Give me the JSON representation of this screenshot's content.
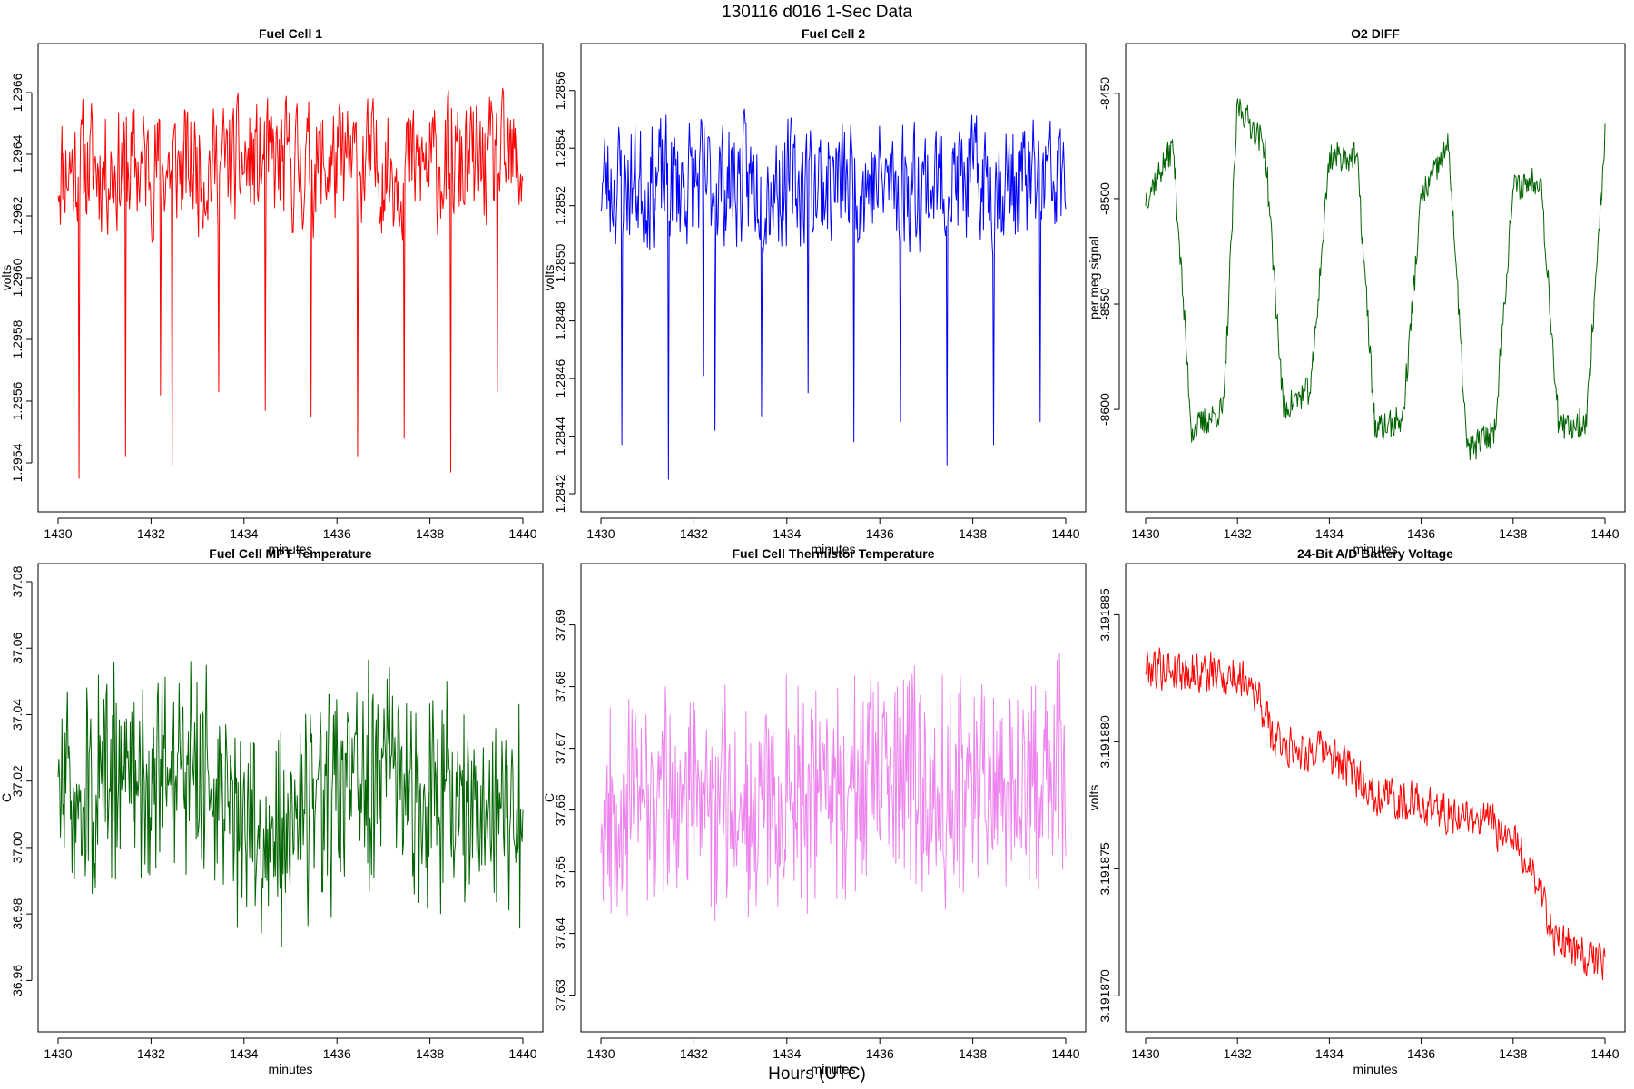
{
  "figure": {
    "title": "130116   d016   1-Sec Data",
    "xlabel": "Hours (UTC)"
  },
  "chart_data": [
    {
      "type": "line",
      "title": "Fuel Cell 1",
      "xlabel": "minutes",
      "ylabel": "volts",
      "color": "#ff0000",
      "xlim": [
        1430,
        1440
      ],
      "ylim": [
        1.2953,
        1.2967
      ],
      "xticks": [
        1430,
        1432,
        1434,
        1436,
        1438,
        1440
      ],
      "xtick_labels": [
        "1430",
        "1432",
        "1434",
        "1436",
        "1438",
        "1440"
      ],
      "yticks": [
        1.2954,
        1.2956,
        1.2958,
        1.296,
        1.2962,
        1.2964,
        1.2966
      ],
      "ytick_labels": [
        "1.2954",
        "1.2956",
        "1.2958",
        "1.2960",
        "1.2962",
        "1.2964",
        "1.2966"
      ],
      "series": [
        {
          "name": "Fuel Cell 1",
          "generator": {
            "kind": "noise_spikes",
            "seed": 11,
            "n": 600,
            "base": 1.29636,
            "amp": 0.00028,
            "spikes": [
              [
                1430.45,
                1.29535
              ],
              [
                1431.45,
                1.29542
              ],
              [
                1432.2,
                1.29562
              ],
              [
                1432.45,
                1.29539
              ],
              [
                1433.45,
                1.29563
              ],
              [
                1434.45,
                1.29557
              ],
              [
                1435.45,
                1.29555
              ],
              [
                1436.45,
                1.29542
              ],
              [
                1437.45,
                1.29548
              ],
              [
                1438.45,
                1.29537
              ],
              [
                1439.45,
                1.29563
              ]
            ]
          }
        }
      ]
    },
    {
      "type": "line",
      "title": "Fuel Cell 2",
      "xlabel": "minutes",
      "ylabel": "volts",
      "color": "#0000ff",
      "xlim": [
        1430,
        1440
      ],
      "ylim": [
        1.2842,
        1.2857
      ],
      "xticks": [
        1430,
        1432,
        1434,
        1436,
        1438,
        1440
      ],
      "xtick_labels": [
        "1430",
        "1432",
        "1434",
        "1436",
        "1438",
        "1440"
      ],
      "yticks": [
        1.2842,
        1.2844,
        1.2846,
        1.2848,
        1.285,
        1.2852,
        1.2854,
        1.2856
      ],
      "ytick_labels": [
        "1.2842",
        "1.2844",
        "1.2846",
        "1.2848",
        "1.2850",
        "1.2852",
        "1.2854",
        "1.2856"
      ],
      "series": [
        {
          "name": "Fuel Cell 2",
          "generator": {
            "kind": "noise_spikes",
            "seed": 23,
            "n": 600,
            "base": 1.28528,
            "amp": 0.0003,
            "spikes": [
              [
                1430.45,
                1.28437
              ],
              [
                1431.45,
                1.28425
              ],
              [
                1432.2,
                1.28461
              ],
              [
                1432.45,
                1.28442
              ],
              [
                1433.45,
                1.28447
              ],
              [
                1434.45,
                1.28455
              ],
              [
                1435.45,
                1.28438
              ],
              [
                1436.45,
                1.28445
              ],
              [
                1437.45,
                1.2843
              ],
              [
                1438.45,
                1.28437
              ],
              [
                1439.45,
                1.28445
              ]
            ]
          }
        }
      ]
    },
    {
      "type": "line",
      "title": "O2 DIFF",
      "xlabel": "minutes",
      "ylabel": "per meg signal",
      "color": "#006400",
      "xlim": [
        1430,
        1440
      ],
      "ylim": [
        -8640,
        -8435
      ],
      "xticks": [
        1430,
        1432,
        1434,
        1436,
        1438,
        1440
      ],
      "xtick_labels": [
        "1430",
        "1432",
        "1434",
        "1436",
        "1438",
        "1440"
      ],
      "yticks": [
        -8600,
        -8550,
        -8500,
        -8450
      ],
      "ytick_labels": [
        "-8600",
        "-8550",
        "-8500",
        "-8450"
      ],
      "series": [
        {
          "name": "O2 DIFF",
          "generator": {
            "kind": "square",
            "seed": 37,
            "n": 600,
            "noise": 7,
            "levels": [
              [
                1430.0,
                -8500
              ],
              [
                1430.6,
                -8475
              ],
              [
                1431.0,
                -8610
              ],
              [
                1431.7,
                -8600
              ],
              [
                1432.0,
                -8455
              ],
              [
                1432.6,
                -8475
              ],
              [
                1433.0,
                -8600
              ],
              [
                1433.6,
                -8590
              ],
              [
                1434.0,
                -8480
              ],
              [
                1434.6,
                -8480
              ],
              [
                1435.0,
                -8610
              ],
              [
                1435.6,
                -8605
              ],
              [
                1436.0,
                -8500
              ],
              [
                1436.6,
                -8475
              ],
              [
                1437.0,
                -8620
              ],
              [
                1437.6,
                -8610
              ],
              [
                1438.0,
                -8495
              ],
              [
                1438.6,
                -8490
              ],
              [
                1439.0,
                -8610
              ],
              [
                1439.6,
                -8605
              ],
              [
                1440.0,
                -8470
              ]
            ]
          }
        }
      ]
    },
    {
      "type": "line",
      "title": "Fuel Cell MPT Temperature",
      "xlabel": "minutes",
      "ylabel": "C",
      "color": "#006400",
      "xlim": [
        1430,
        1440
      ],
      "ylim": [
        36.95,
        37.08
      ],
      "xticks": [
        1430,
        1432,
        1434,
        1436,
        1438,
        1440
      ],
      "xtick_labels": [
        "1430",
        "1432",
        "1434",
        "1436",
        "1438",
        "1440"
      ],
      "yticks": [
        36.96,
        36.98,
        37.0,
        37.02,
        37.04,
        37.06,
        37.08
      ],
      "ytick_labels": [
        "36.96",
        "36.98",
        "37.00",
        "37.02",
        "37.04",
        "37.06",
        "37.08"
      ],
      "series": [
        {
          "name": "MPT Temperature",
          "generator": {
            "kind": "noise",
            "seed": 51,
            "n": 600,
            "base": 37.007,
            "amp": 0.03,
            "wobble": [
              [
                1430,
                0.008
              ],
              [
                1432.9,
                0.02
              ],
              [
                1434.3,
                -0.005
              ],
              [
                1437.0,
                0.015
              ],
              [
                1440,
                0.0
              ]
            ]
          }
        }
      ]
    },
    {
      "type": "line",
      "title": "Fuel Cell Thermistor Temperature",
      "xlabel": "minutes",
      "ylabel": "C",
      "color": "#ee82ee",
      "xlim": [
        1430,
        1440
      ],
      "ylim": [
        37.627,
        37.697
      ],
      "xticks": [
        1430,
        1432,
        1434,
        1436,
        1438,
        1440
      ],
      "xtick_labels": [
        "1430",
        "1432",
        "1434",
        "1436",
        "1438",
        "1440"
      ],
      "yticks": [
        37.63,
        37.64,
        37.65,
        37.66,
        37.67,
        37.68,
        37.69
      ],
      "ytick_labels": [
        "37.63",
        "37.64",
        "37.65",
        "37.66",
        "37.67",
        "37.68",
        "37.69"
      ],
      "series": [
        {
          "name": "Thermistor Temperature",
          "generator": {
            "kind": "noise",
            "seed": 67,
            "n": 600,
            "base": 37.663,
            "amp": 0.016,
            "wobble": [
              [
                1430,
                -0.002
              ],
              [
                1435,
                0.0
              ],
              [
                1440,
                0.003
              ]
            ]
          }
        }
      ]
    },
    {
      "type": "line",
      "title": "24-Bit A/D Battery Voltage",
      "xlabel": "minutes",
      "ylabel": "volts",
      "color": "#ff0000",
      "xlim": [
        1430,
        1440
      ],
      "ylim": [
        3.1918693,
        3.1918863
      ],
      "xticks": [
        1430,
        1432,
        1434,
        1436,
        1438,
        1440
      ],
      "xtick_labels": [
        "1430",
        "1432",
        "1434",
        "1436",
        "1438",
        "1440"
      ],
      "yticks": [
        3.19187,
        3.191875,
        3.19188,
        3.191885
      ],
      "ytick_labels": [
        "3.191870",
        "3.191875",
        "3.191880",
        "3.191885"
      ],
      "series": [
        {
          "name": "Battery Voltage",
          "generator": {
            "kind": "trend",
            "seed": 79,
            "n": 600,
            "amp": 1.1e-06,
            "trend": [
              [
                1430,
                3.191883
              ],
              [
                1432.3,
                3.1918825
              ],
              [
                1432.8,
                3.19188
              ],
              [
                1434,
                3.1918795
              ],
              [
                1435,
                3.191878
              ],
              [
                1437.5,
                3.1918768
              ],
              [
                1438.3,
                3.1918755
              ],
              [
                1439,
                3.191872
              ],
              [
                1440,
                3.1918712
              ]
            ]
          }
        }
      ]
    }
  ]
}
